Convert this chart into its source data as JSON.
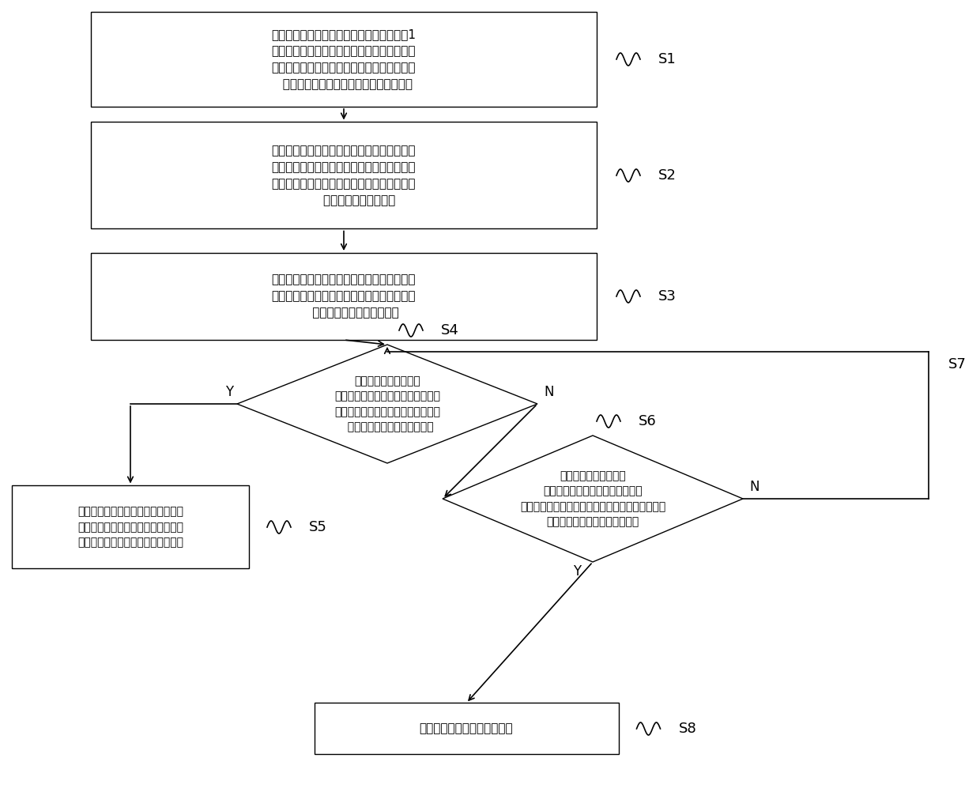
{
  "bg_color": "#ffffff",
  "line_color": "#000000",
  "text_color": "#000000",
  "s1_text": "路由节点每隔预设时间如一个小时持续唤醒1\n个采样周期，各采集节点、路由节点发送心跳\n包至协调器节点，协调器节点记录所述采集节\n  点、路由节点的心跳包路径，以形成网络",
  "s2_text": "所述协调器节点将所述网络中的对应采集节点\n信息自动记录到各路由节点中，即在路由节点\n中记录通过该路由节点的所有采集节点的设备\n        编号和数据包大小信息",
  "s3_text": "在所述形成的网络的基础上，所述路由节点按\n照采集节点的采样时刻自动提前唤醒，等待所\n      属的采集节点进行数据跳传",
  "s4_text": "所述路由节点从所属的\n采集节点接收到数据包后，先将接收\n到的数据包与记录在该采集节点上的\n  设备编号和数据包大小做对比",
  "s5_text": "如设备编号和数据包比对均一致，则\n所述路由节点将接收到的数据包上传\n至协调器节点，并自动进入休眠状态",
  "s6_text": "如设备编号和数据包有\n其一比对不一致，则所述路由节点\n保持唤醒状态，自动发送指令通知采集节点重新采\n集和传输，并判断等待是否超时",
  "s8_text": "如超时，则自动进入休眠状态",
  "label_s1": "S1",
  "label_s2": "S2",
  "label_s3": "S3",
  "label_s4": "S4",
  "label_s5": "S5",
  "label_s6": "S6",
  "label_s7": "S7",
  "label_s8": "S8",
  "label_y": "Y",
  "label_n": "N"
}
